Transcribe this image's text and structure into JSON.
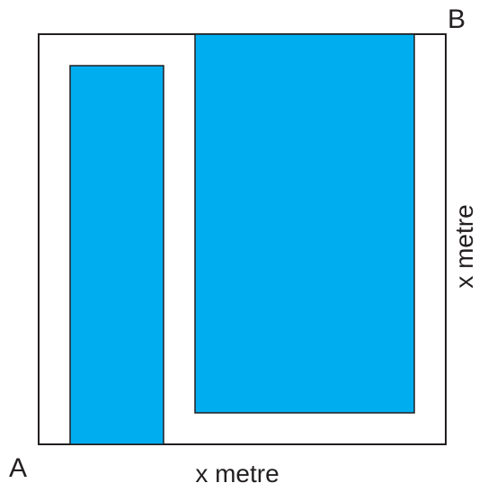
{
  "labels": {
    "corner_a": "A",
    "corner_b": "B",
    "bottom_side": "x metre",
    "right_side": "x metre"
  },
  "colors": {
    "outline": "#231f20",
    "fill": "#00aeef",
    "background": "#ffffff"
  }
}
